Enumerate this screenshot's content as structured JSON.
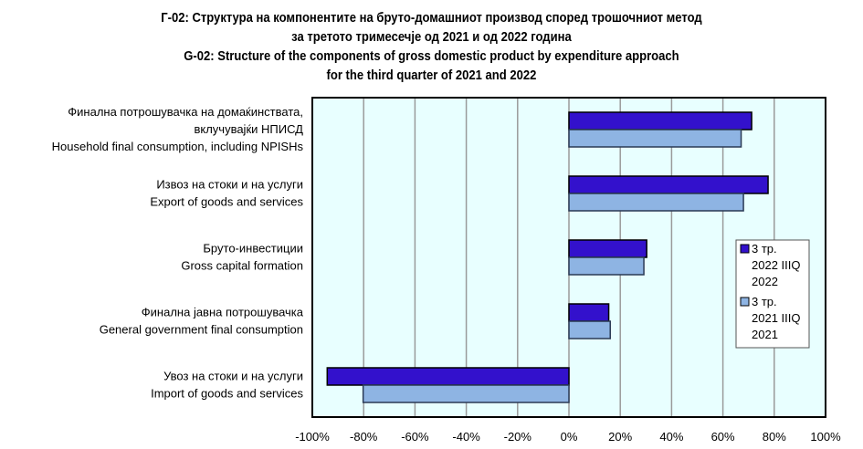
{
  "chart_data": {
    "type": "bar",
    "orientation": "horizontal",
    "title": [
      "Г-02: Структура на компонентите на бруто-домашниот производ според трошочниот метод",
      "за третото тримесечје од 2021 и од 2022 година",
      "G-02: Structure of the components of gross domestic product by expenditure approach",
      "for the third quarter of 2021 and 2022"
    ],
    "categories": [
      [
        "Финална потрошувачка на домаќинствата,",
        "вклучувајќи НПИСД",
        "Household final consumption, including NPISHs"
      ],
      [
        "Извоз на стоки и на услуги",
        "Export of goods and services"
      ],
      [
        "Бруто-инвестиции",
        "Gross capital formation"
      ],
      [
        "Финална јавна потрошувачка",
        "General government final consumption"
      ],
      [
        "Увоз на стоки и на услуги",
        "Import of goods and services"
      ]
    ],
    "series": [
      {
        "name": [
          "3 тр.",
          "2022 IIIQ",
          "2022"
        ],
        "color": "#3311CC",
        "values": [
          71.2,
          77.6,
          30.3,
          15.5,
          -94.2
        ]
      },
      {
        "name": [
          "3 тр.",
          "2021 IIIQ",
          "2021"
        ],
        "color": "#8EB4E3",
        "values": [
          67.1,
          68.0,
          29.2,
          16.1,
          -80.2
        ]
      }
    ],
    "xlim": [
      -100,
      100
    ],
    "xticks": [
      -100,
      -80,
      -60,
      -40,
      -20,
      0,
      20,
      40,
      60,
      80,
      100
    ],
    "xtick_format": "percent",
    "xlabel": "",
    "ylabel": "",
    "grid": "vertical",
    "legend_position": "right",
    "plot_background": "#E8FFFF"
  }
}
